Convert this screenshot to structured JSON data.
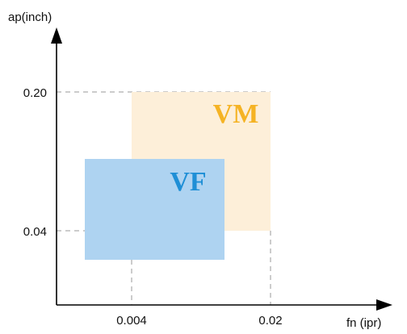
{
  "axes": {
    "y_label": "ap(inch)",
    "x_label": "fn (ipr)",
    "x_ticks": [
      "0.004",
      "0.02"
    ],
    "y_ticks": [
      "0.20",
      "0.04"
    ]
  },
  "regions": [
    {
      "label": "VM",
      "fill_color": "#fdefd9",
      "text_color": "#f5b324"
    },
    {
      "label": "VF",
      "fill_color": "#aed3f1",
      "text_color": "#1f8fd6"
    }
  ],
  "colors": {
    "axis": "#000000",
    "guide_lines": "#9a9a9a"
  }
}
